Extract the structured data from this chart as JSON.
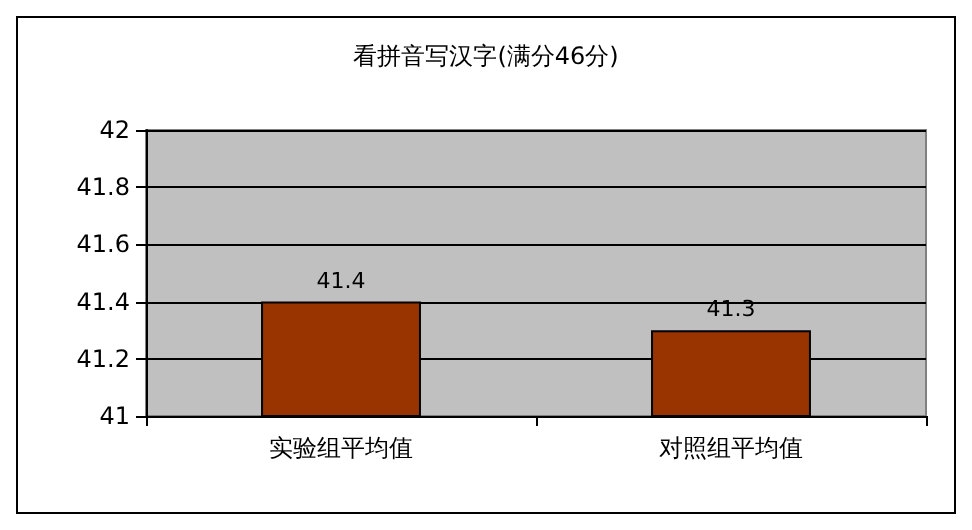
{
  "chart_data": {
    "type": "bar",
    "title": "看拼音写汉字(满分46分)",
    "categories": [
      "实验组平均值",
      "对照组平均值"
    ],
    "values": [
      41.4,
      41.3
    ],
    "color": "#993300",
    "ylim": [
      41,
      42
    ],
    "yticks": [
      41,
      41.2,
      41.4,
      41.6,
      41.8,
      42
    ],
    "grid": "y",
    "data_labels": true
  }
}
